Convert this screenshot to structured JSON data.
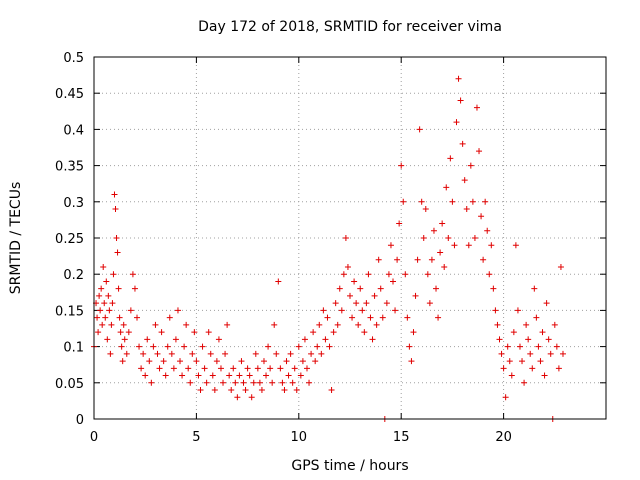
{
  "chart_data": {
    "type": "scatter",
    "title": "Day 172 of 2018, SRMTID for receiver vima",
    "xlabel": "GPS time / hours",
    "ylabel": "SRMTID / TECUs",
    "xlim": [
      0,
      25
    ],
    "ylim": [
      0,
      0.5
    ],
    "xticks": [
      0,
      5,
      10,
      15,
      20
    ],
    "yticks": [
      0,
      0.05,
      0.1,
      0.15,
      0.2,
      0.25,
      0.3,
      0.35,
      0.4,
      0.45,
      0.5
    ],
    "xtick_labels": [
      "0",
      "5",
      "10",
      "15",
      "20"
    ],
    "ytick_labels": [
      "0",
      "0.05",
      "0.1",
      "0.15",
      "0.2",
      "0.25",
      "0.3",
      "0.35",
      "0.4",
      "0.45",
      "0.5"
    ],
    "grid": true,
    "marker": "plus",
    "color": "#e00000",
    "series": [
      {
        "name": "SRMTID",
        "points": [
          [
            0.0,
            0.1
          ],
          [
            0.1,
            0.16
          ],
          [
            0.15,
            0.14
          ],
          [
            0.2,
            0.12
          ],
          [
            0.25,
            0.17
          ],
          [
            0.3,
            0.15
          ],
          [
            0.35,
            0.18
          ],
          [
            0.4,
            0.13
          ],
          [
            0.45,
            0.21
          ],
          [
            0.5,
            0.16
          ],
          [
            0.55,
            0.14
          ],
          [
            0.6,
            0.19
          ],
          [
            0.65,
            0.11
          ],
          [
            0.7,
            0.17
          ],
          [
            0.75,
            0.15
          ],
          [
            0.8,
            0.09
          ],
          [
            0.85,
            0.13
          ],
          [
            0.9,
            0.16
          ],
          [
            0.95,
            0.2
          ],
          [
            1.0,
            0.31
          ],
          [
            1.05,
            0.29
          ],
          [
            1.1,
            0.25
          ],
          [
            1.15,
            0.23
          ],
          [
            1.2,
            0.18
          ],
          [
            1.25,
            0.14
          ],
          [
            1.3,
            0.12
          ],
          [
            1.35,
            0.1
          ],
          [
            1.4,
            0.08
          ],
          [
            1.45,
            0.13
          ],
          [
            1.5,
            0.11
          ],
          [
            1.6,
            0.09
          ],
          [
            1.7,
            0.12
          ],
          [
            1.8,
            0.15
          ],
          [
            1.9,
            0.2
          ],
          [
            2.0,
            0.18
          ],
          [
            2.1,
            0.14
          ],
          [
            2.2,
            0.1
          ],
          [
            2.3,
            0.07
          ],
          [
            2.4,
            0.09
          ],
          [
            2.5,
            0.06
          ],
          [
            2.6,
            0.11
          ],
          [
            2.7,
            0.08
          ],
          [
            2.8,
            0.05
          ],
          [
            2.9,
            0.1
          ],
          [
            3.0,
            0.13
          ],
          [
            3.1,
            0.09
          ],
          [
            3.2,
            0.07
          ],
          [
            3.3,
            0.12
          ],
          [
            3.4,
            0.08
          ],
          [
            3.5,
            0.06
          ],
          [
            3.6,
            0.1
          ],
          [
            3.7,
            0.14
          ],
          [
            3.8,
            0.09
          ],
          [
            3.9,
            0.07
          ],
          [
            4.0,
            0.11
          ],
          [
            4.1,
            0.15
          ],
          [
            4.2,
            0.08
          ],
          [
            4.3,
            0.06
          ],
          [
            4.4,
            0.1
          ],
          [
            4.5,
            0.13
          ],
          [
            4.6,
            0.07
          ],
          [
            4.7,
            0.05
          ],
          [
            4.8,
            0.09
          ],
          [
            4.9,
            0.12
          ],
          [
            5.0,
            0.08
          ],
          [
            5.1,
            0.06
          ],
          [
            5.2,
            0.04
          ],
          [
            5.3,
            0.1
          ],
          [
            5.4,
            0.07
          ],
          [
            5.5,
            0.05
          ],
          [
            5.6,
            0.12
          ],
          [
            5.7,
            0.09
          ],
          [
            5.8,
            0.06
          ],
          [
            5.9,
            0.04
          ],
          [
            6.0,
            0.08
          ],
          [
            6.1,
            0.11
          ],
          [
            6.2,
            0.07
          ],
          [
            6.3,
            0.05
          ],
          [
            6.4,
            0.09
          ],
          [
            6.5,
            0.13
          ],
          [
            6.6,
            0.06
          ],
          [
            6.7,
            0.04
          ],
          [
            6.8,
            0.07
          ],
          [
            6.9,
            0.05
          ],
          [
            7.0,
            0.03
          ],
          [
            7.1,
            0.06
          ],
          [
            7.2,
            0.08
          ],
          [
            7.3,
            0.05
          ],
          [
            7.4,
            0.04
          ],
          [
            7.5,
            0.07
          ],
          [
            7.6,
            0.06
          ],
          [
            7.7,
            0.03
          ],
          [
            7.8,
            0.05
          ],
          [
            7.9,
            0.09
          ],
          [
            8.0,
            0.07
          ],
          [
            8.1,
            0.05
          ],
          [
            8.2,
            0.04
          ],
          [
            8.3,
            0.08
          ],
          [
            8.4,
            0.06
          ],
          [
            8.5,
            0.1
          ],
          [
            8.6,
            0.07
          ],
          [
            8.7,
            0.05
          ],
          [
            8.8,
            0.13
          ],
          [
            8.9,
            0.09
          ],
          [
            9.0,
            0.19
          ],
          [
            9.1,
            0.07
          ],
          [
            9.2,
            0.05
          ],
          [
            9.3,
            0.04
          ],
          [
            9.4,
            0.08
          ],
          [
            9.5,
            0.06
          ],
          [
            9.6,
            0.09
          ],
          [
            9.7,
            0.05
          ],
          [
            9.8,
            0.07
          ],
          [
            9.9,
            0.04
          ],
          [
            10.0,
            0.1
          ],
          [
            10.1,
            0.06
          ],
          [
            10.2,
            0.08
          ],
          [
            10.3,
            0.11
          ],
          [
            10.4,
            0.07
          ],
          [
            10.5,
            0.05
          ],
          [
            10.6,
            0.09
          ],
          [
            10.7,
            0.12
          ],
          [
            10.8,
            0.08
          ],
          [
            10.9,
            0.1
          ],
          [
            11.0,
            0.13
          ],
          [
            11.1,
            0.09
          ],
          [
            11.2,
            0.15
          ],
          [
            11.3,
            0.11
          ],
          [
            11.4,
            0.14
          ],
          [
            11.5,
            0.1
          ],
          [
            11.6,
            0.04
          ],
          [
            11.7,
            0.12
          ],
          [
            11.8,
            0.16
          ],
          [
            11.9,
            0.13
          ],
          [
            12.0,
            0.18
          ],
          [
            12.1,
            0.15
          ],
          [
            12.2,
            0.2
          ],
          [
            12.3,
            0.25
          ],
          [
            12.4,
            0.21
          ],
          [
            12.5,
            0.17
          ],
          [
            12.6,
            0.14
          ],
          [
            12.7,
            0.19
          ],
          [
            12.8,
            0.16
          ],
          [
            12.9,
            0.13
          ],
          [
            13.0,
            0.18
          ],
          [
            13.1,
            0.15
          ],
          [
            13.2,
            0.12
          ],
          [
            13.3,
            0.16
          ],
          [
            13.4,
            0.2
          ],
          [
            13.5,
            0.14
          ],
          [
            13.6,
            0.11
          ],
          [
            13.7,
            0.17
          ],
          [
            13.8,
            0.13
          ],
          [
            13.9,
            0.22
          ],
          [
            14.0,
            0.18
          ],
          [
            14.1,
            0.14
          ],
          [
            14.2,
            0.0
          ],
          [
            14.3,
            0.16
          ],
          [
            14.4,
            0.2
          ],
          [
            14.5,
            0.24
          ],
          [
            14.6,
            0.19
          ],
          [
            14.7,
            0.15
          ],
          [
            14.8,
            0.22
          ],
          [
            14.9,
            0.27
          ],
          [
            15.0,
            0.35
          ],
          [
            15.1,
            0.3
          ],
          [
            15.2,
            0.2
          ],
          [
            15.3,
            0.14
          ],
          [
            15.4,
            0.1
          ],
          [
            15.5,
            0.08
          ],
          [
            15.6,
            0.12
          ],
          [
            15.7,
            0.17
          ],
          [
            15.8,
            0.22
          ],
          [
            15.9,
            0.4
          ],
          [
            16.0,
            0.3
          ],
          [
            16.1,
            0.25
          ],
          [
            16.2,
            0.29
          ],
          [
            16.3,
            0.2
          ],
          [
            16.4,
            0.16
          ],
          [
            16.5,
            0.22
          ],
          [
            16.6,
            0.26
          ],
          [
            16.7,
            0.18
          ],
          [
            16.8,
            0.14
          ],
          [
            16.9,
            0.23
          ],
          [
            17.0,
            0.27
          ],
          [
            17.1,
            0.21
          ],
          [
            17.2,
            0.32
          ],
          [
            17.3,
            0.25
          ],
          [
            17.4,
            0.36
          ],
          [
            17.5,
            0.3
          ],
          [
            17.6,
            0.24
          ],
          [
            17.7,
            0.41
          ],
          [
            17.8,
            0.47
          ],
          [
            17.9,
            0.44
          ],
          [
            18.0,
            0.38
          ],
          [
            18.1,
            0.33
          ],
          [
            18.2,
            0.29
          ],
          [
            18.3,
            0.24
          ],
          [
            18.4,
            0.35
          ],
          [
            18.5,
            0.3
          ],
          [
            18.6,
            0.25
          ],
          [
            18.7,
            0.43
          ],
          [
            18.8,
            0.37
          ],
          [
            18.9,
            0.28
          ],
          [
            19.0,
            0.22
          ],
          [
            19.1,
            0.3
          ],
          [
            19.2,
            0.26
          ],
          [
            19.3,
            0.2
          ],
          [
            19.4,
            0.24
          ],
          [
            19.5,
            0.18
          ],
          [
            19.6,
            0.15
          ],
          [
            19.7,
            0.13
          ],
          [
            19.8,
            0.11
          ],
          [
            19.9,
            0.09
          ],
          [
            20.0,
            0.07
          ],
          [
            20.1,
            0.03
          ],
          [
            20.2,
            0.1
          ],
          [
            20.3,
            0.08
          ],
          [
            20.4,
            0.06
          ],
          [
            20.5,
            0.12
          ],
          [
            20.6,
            0.24
          ],
          [
            20.7,
            0.15
          ],
          [
            20.8,
            0.1
          ],
          [
            20.9,
            0.08
          ],
          [
            21.0,
            0.05
          ],
          [
            21.1,
            0.13
          ],
          [
            21.2,
            0.11
          ],
          [
            21.3,
            0.09
          ],
          [
            21.4,
            0.07
          ],
          [
            21.5,
            0.18
          ],
          [
            21.6,
            0.14
          ],
          [
            21.7,
            0.1
          ],
          [
            21.8,
            0.08
          ],
          [
            21.9,
            0.12
          ],
          [
            22.0,
            0.06
          ],
          [
            22.1,
            0.16
          ],
          [
            22.2,
            0.11
          ],
          [
            22.3,
            0.09
          ],
          [
            22.4,
            0.0
          ],
          [
            22.5,
            0.13
          ],
          [
            22.6,
            0.1
          ],
          [
            22.7,
            0.07
          ],
          [
            22.8,
            0.21
          ],
          [
            22.9,
            0.09
          ]
        ]
      }
    ]
  }
}
